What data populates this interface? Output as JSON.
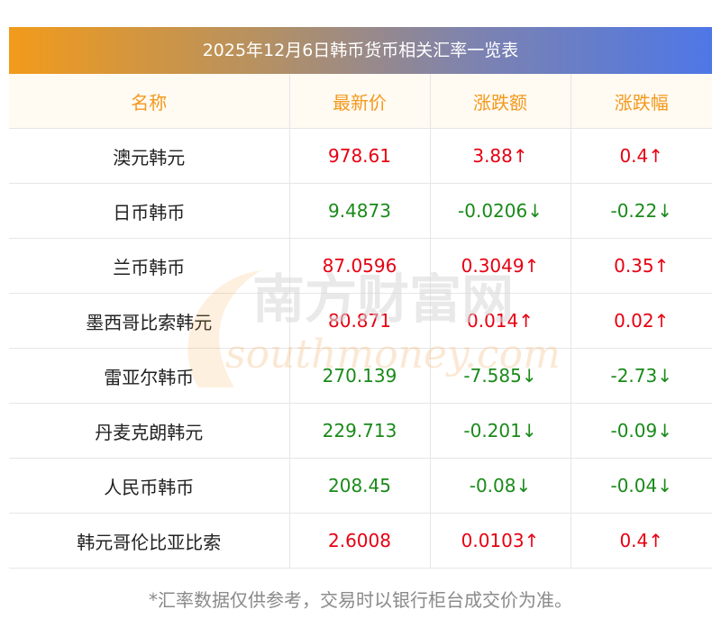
{
  "title": "2025年12月6日韩币货币相关汇率一览表",
  "columns": [
    "名称",
    "最新价",
    "涨跌额",
    "涨跌幅"
  ],
  "rows": [
    {
      "name": "澳元韩元",
      "price": "978.61",
      "change": "3.88↑",
      "pct": "0.4↑",
      "dir": "up"
    },
    {
      "name": "日币韩币",
      "price": "9.4873",
      "change": "-0.0206↓",
      "pct": "-0.22↓",
      "dir": "down"
    },
    {
      "name": "兰币韩币",
      "price": "87.0596",
      "change": "0.3049↑",
      "pct": "0.35↑",
      "dir": "up"
    },
    {
      "name": "墨西哥比索韩元",
      "price": "80.871",
      "change": "0.014↑",
      "pct": "0.02↑",
      "dir": "up"
    },
    {
      "name": "雷亚尔韩币",
      "price": "270.139",
      "change": "-7.585↓",
      "pct": "-2.73↓",
      "dir": "down"
    },
    {
      "name": "丹麦克朗韩元",
      "price": "229.713",
      "change": "-0.201↓",
      "pct": "-0.09↓",
      "dir": "down"
    },
    {
      "name": "人民币韩币",
      "price": "208.45",
      "change": "-0.08↓",
      "pct": "-0.04↓",
      "dir": "down"
    },
    {
      "name": "韩元哥伦比亚比索",
      "price": "2.6008",
      "change": "0.0103↑",
      "pct": "0.4↑",
      "dir": "up"
    }
  ],
  "watermark": {
    "cn": "南方财富网",
    "en": "southmoney.com"
  },
  "footnote": "*汇率数据仅供参考，交易时以银行柜台成交价为准。",
  "colors": {
    "up": "#e60012",
    "down": "#1a8a1a",
    "header_text": "#f3991c",
    "header_bg": "#fffaf2"
  }
}
